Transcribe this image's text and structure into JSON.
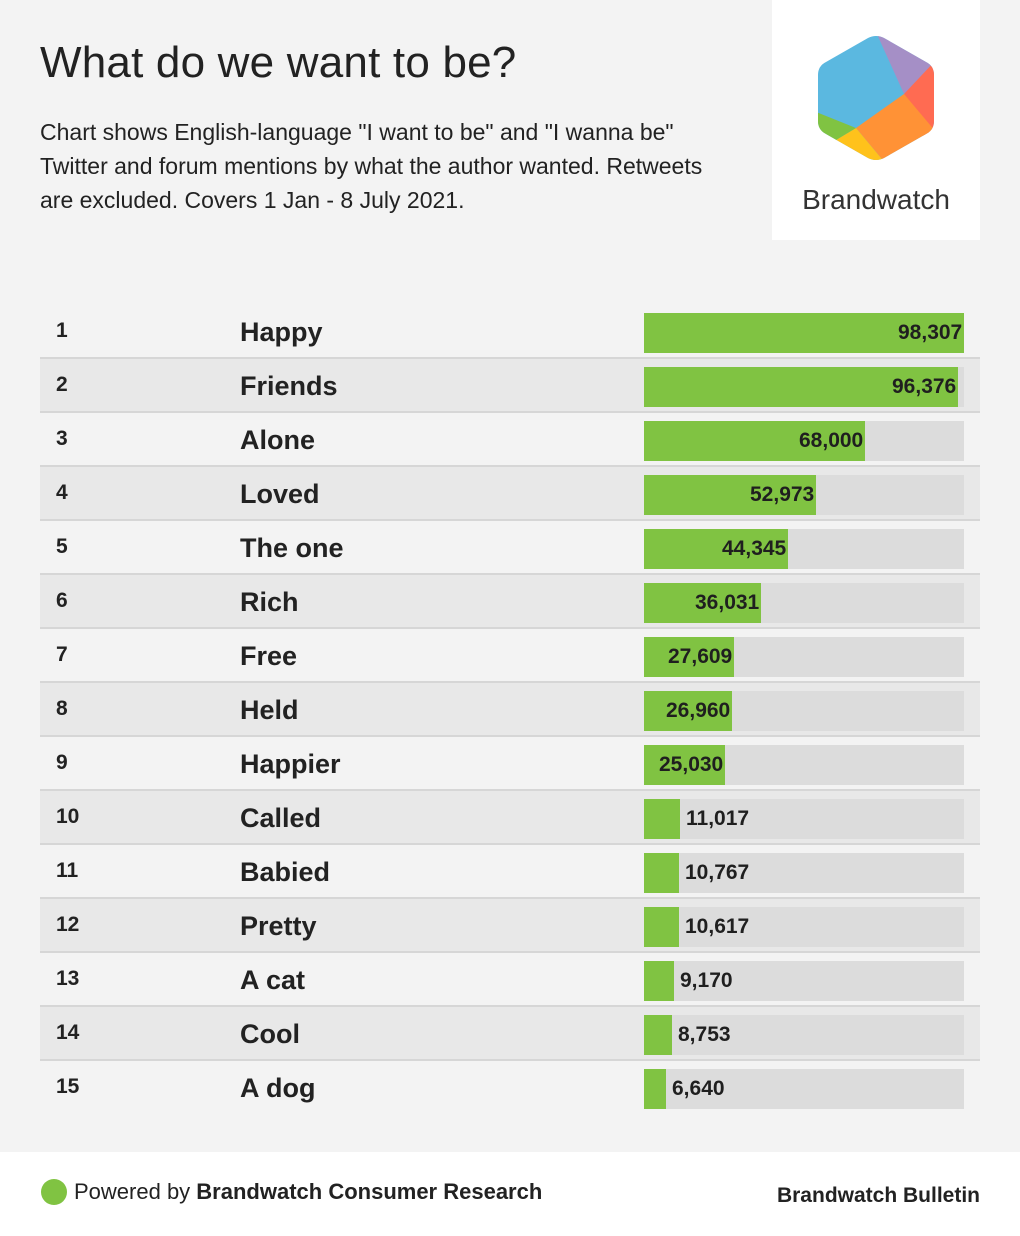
{
  "header": {
    "title": "What do we want to be?",
    "subtitle": "Chart shows English-language \"I want to be\" and \"I wanna be\" Twitter and forum mentions by what the author wanted. Retweets are excluded. Covers 1 Jan - 8 July 2021."
  },
  "logo": {
    "wordmark": "Brandwatch",
    "icon": "brandwatch-hexagon-icon",
    "colors": [
      "#5bb8e0",
      "#a58fc6",
      "#ff6b52",
      "#ff9236",
      "#ffc21b",
      "#80c342"
    ]
  },
  "chart_data": {
    "type": "bar",
    "orientation": "horizontal",
    "ranks": [
      "1",
      "2",
      "3",
      "4",
      "5",
      "6",
      "7",
      "8",
      "9",
      "10",
      "11",
      "12",
      "13",
      "14",
      "15"
    ],
    "categories": [
      "Happy",
      "Friends",
      "Alone",
      "Loved",
      "The one",
      "Rich",
      "Free",
      "Held",
      "Happier",
      "Called",
      "Babied",
      "Pretty",
      "A cat",
      "Cool",
      "A dog"
    ],
    "values": [
      98307,
      96376,
      68000,
      52973,
      44345,
      36031,
      27609,
      26960,
      25030,
      11017,
      10767,
      10617,
      9170,
      8753,
      6640
    ],
    "value_labels": [
      "98,307",
      "96,376",
      "68,000",
      "52,973",
      "44,345",
      "36,031",
      "27,609",
      "26,960",
      "25,030",
      "11,017",
      "10,767",
      "10,617",
      "9,170",
      "8,753",
      "6,640"
    ],
    "xlim": [
      0,
      98307
    ],
    "bar_color": "#80c342",
    "track_color": "#dcdcdc",
    "grid": false
  },
  "footer": {
    "powered_prefix": "Powered by ",
    "powered_brand": "Brandwatch Consumer Research",
    "right_label": "Brandwatch Bulletin",
    "dot_color": "#80c342"
  }
}
